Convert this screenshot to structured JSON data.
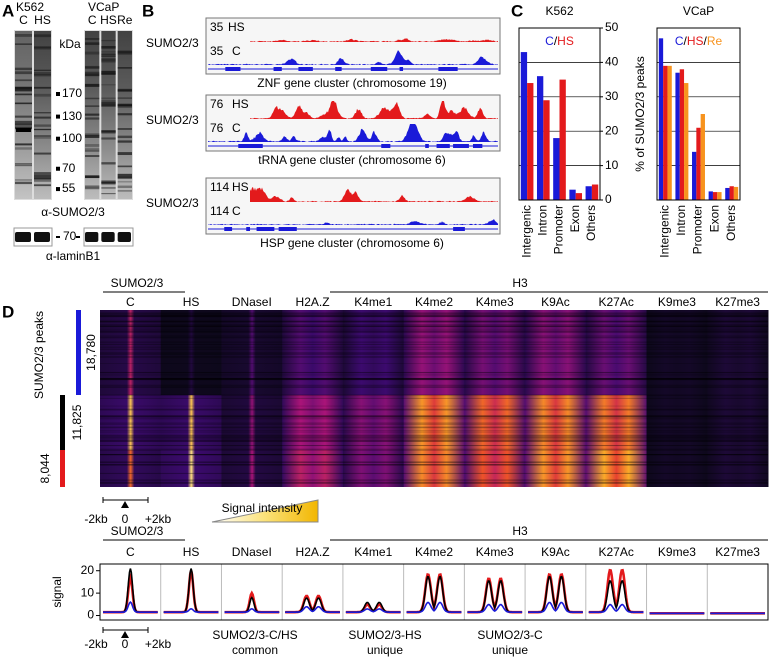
{
  "panel_a": {
    "letter": "A",
    "k562": {
      "title": "K562",
      "lanes": [
        {
          "label": "C",
          "color": "#1a1ad8"
        },
        {
          "label": "HS",
          "color": "#e31a1c"
        }
      ]
    },
    "vcap": {
      "title": "VCaP",
      "lanes": [
        {
          "label": "C",
          "color": "#1a1ad8"
        },
        {
          "label": "HS",
          "color": "#e31a1c"
        },
        {
          "label": "Re",
          "color": "#f7931e"
        }
      ]
    },
    "unit": "kDa",
    "markers": [
      170,
      130,
      100,
      70,
      55
    ],
    "antibody": "α-SUMO2/3",
    "lamin_marker": 70,
    "lamin_antibody": "α-laminB1"
  },
  "panel_b": {
    "letter": "B",
    "hs_color": "#e31a1c",
    "c_color": "#1a1ad8",
    "tracks": [
      {
        "antibody": "SUMO2/3",
        "hs_scale": 35,
        "hs": "HS",
        "c_scale": 35,
        "c": "C",
        "caption": "ZNF gene cluster (chromosome 19)"
      },
      {
        "antibody": "SUMO2/3",
        "hs_scale": 76,
        "hs": "HS",
        "c_scale": 76,
        "c": "C",
        "caption": "tRNA gene cluster (chromosome 6)"
      },
      {
        "antibody": "SUMO2/3",
        "hs_scale": 114,
        "hs": "HS",
        "c_scale": 114,
        "c": "C",
        "caption": "HSP gene cluster (chromosome 6)"
      }
    ]
  },
  "panel_c": {
    "letter": "C",
    "y_label": "% of SUMO2/3 peaks",
    "separator": "/",
    "categories": [
      "Intergenic",
      "Intron",
      "Promoter",
      "Exon",
      "Others"
    ],
    "ylim": [
      0,
      50
    ],
    "yticks": [
      0,
      10,
      20,
      30,
      40,
      50
    ],
    "grid": true,
    "charts": [
      {
        "type": "bar",
        "title": "K562",
        "tick_labels": true,
        "series": [
          {
            "name": "C",
            "color": "#1a1ad8",
            "values": [
              43,
              36,
              18,
              3,
              4
            ]
          },
          {
            "name": "HS",
            "color": "#e31a1c",
            "values": [
              34,
              29,
              35,
              2,
              4.5
            ]
          }
        ]
      },
      {
        "type": "bar",
        "title": "VCaP",
        "tick_labels": false,
        "series": [
          {
            "name": "C",
            "color": "#1a1ad8",
            "values": [
              47,
              37,
              14,
              2.5,
              3.5
            ]
          },
          {
            "name": "HS",
            "color": "#e31a1c",
            "values": [
              39,
              38,
              21,
              2.3,
              4
            ]
          },
          {
            "name": "Re",
            "color": "#f7931e",
            "values": [
              39,
              34,
              25,
              2.3,
              3.8
            ]
          }
        ]
      }
    ]
  },
  "panel_d": {
    "letter": "D",
    "sumo_header": "SUMO2/3",
    "h3_header": "H3",
    "tracks": [
      "C",
      "HS",
      "DNaseI",
      "H2A.Z",
      "K4me1",
      "K4me2",
      "K4me3",
      "K9Ac",
      "K27Ac",
      "K9me3",
      "K27me3"
    ],
    "groups_label": "SUMO2/3 peaks",
    "groups": [
      {
        "count": "18,780",
        "color": "#1a1ad8"
      },
      {
        "count": "11,825",
        "color": "#000000"
      },
      {
        "count": "8,044",
        "color": "#e31a1c"
      }
    ],
    "x_axis": [
      "-2kb",
      "0",
      "+2kb"
    ],
    "scale_label": "Signal intensity",
    "profile": {
      "type": "line",
      "y_label": "signal",
      "ylim": [
        -2,
        23
      ],
      "yticks": [
        0,
        10,
        20
      ],
      "series": [
        {
          "name": "SUMO2/3-HS",
          "line2": "unique",
          "color": "#e31a1c",
          "values": [
            17,
            20,
            10,
            9,
            5,
            19,
            17,
            19,
            21,
            1,
            1
          ]
        },
        {
          "name": "SUMO2/3-C/HS",
          "line2": "common",
          "color": "#000000",
          "values": [
            21,
            21,
            8,
            8,
            6,
            18,
            16,
            18,
            16,
            1,
            1
          ]
        },
        {
          "name": "SUMO2/3-C",
          "line2": "unique",
          "color": "#1a1ad8",
          "values": [
            6,
            3,
            3,
            4,
            3,
            6,
            5,
            6,
            5,
            1,
            1
          ]
        }
      ]
    }
  }
}
